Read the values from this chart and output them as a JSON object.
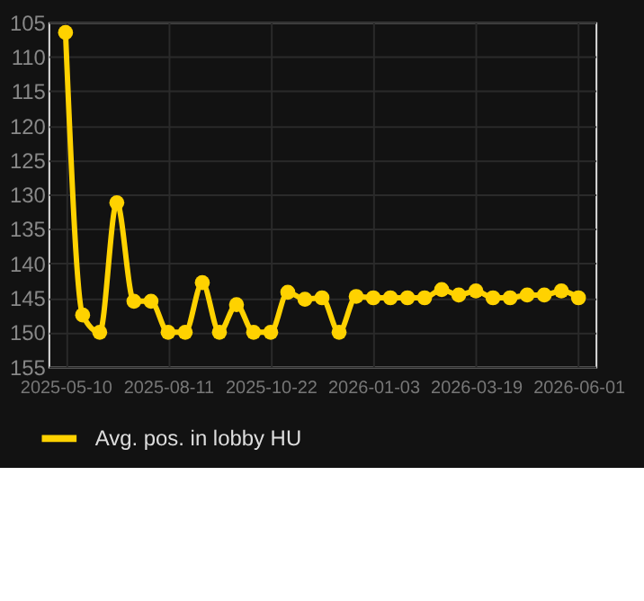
{
  "chart_data": {
    "type": "line",
    "categories": [
      "2025-05-10",
      null,
      null,
      null,
      null,
      null,
      "2025-08-11",
      null,
      null,
      null,
      null,
      null,
      "2025-10-22",
      null,
      null,
      null,
      null,
      null,
      "2026-01-03",
      null,
      null,
      null,
      null,
      null,
      "2026-03-19",
      null,
      null,
      null,
      null,
      null,
      "2026-06-01"
    ],
    "series": [
      {
        "name": "Avg. pos. in lobby HU",
        "color": "#ffd200",
        "values": [
          106.5,
          147.5,
          150,
          131.2,
          145.5,
          145.5,
          150,
          150,
          142.8,
          150,
          146,
          150,
          150,
          144.2,
          145.2,
          145,
          150,
          144.8,
          145,
          145,
          145,
          145,
          143.8,
          144.6,
          144,
          145,
          145,
          144.6,
          144.6,
          144,
          145
        ]
      }
    ],
    "ylim": [
      155,
      105
    ],
    "yticks": [
      105,
      110,
      115,
      120,
      125,
      130,
      135,
      140,
      145,
      150,
      155
    ],
    "grid": true,
    "legend": "bottom",
    "marker": "circle",
    "line_style": "solid"
  }
}
